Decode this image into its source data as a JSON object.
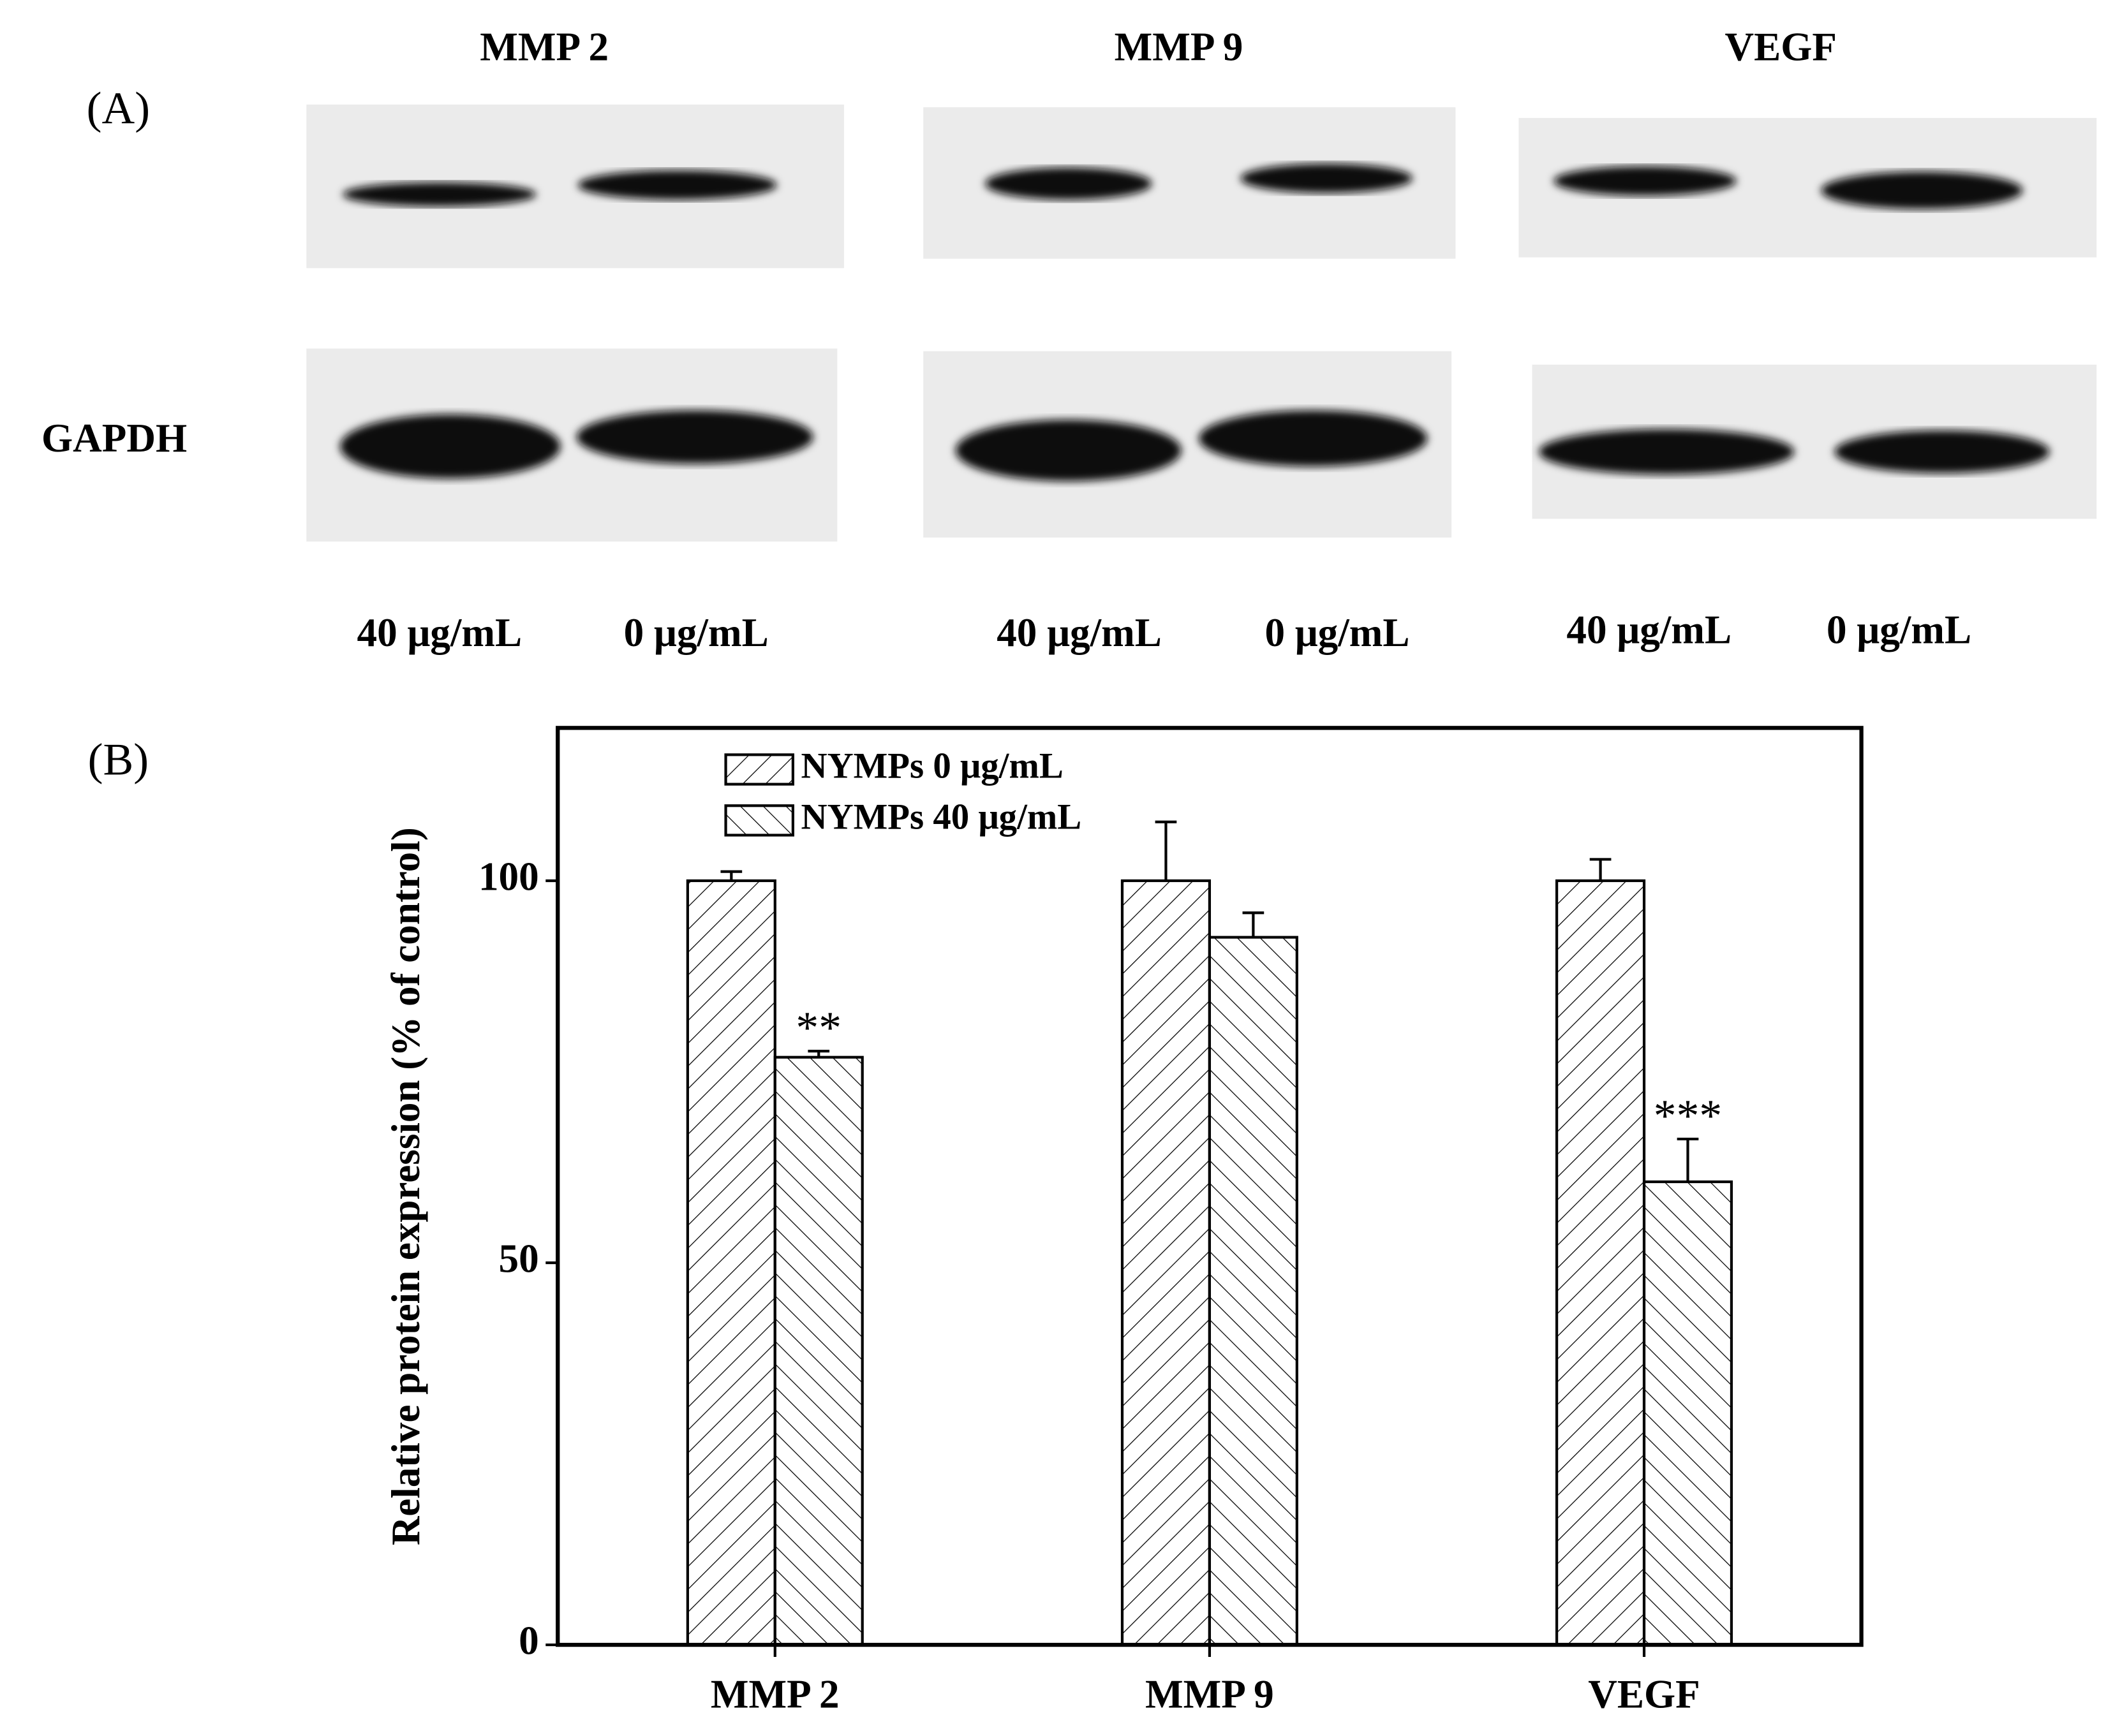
{
  "panel_labels": [
    "(A)",
    "(B)"
  ],
  "blot": {
    "headings": [
      "MMP 2",
      "MMP 9",
      "VEGF"
    ],
    "loading_control": "GAPDH",
    "lanes": [
      [
        "40 μg/mL",
        "0 μg/mL"
      ],
      [
        "40 μg/mL",
        "0 μg/mL"
      ],
      [
        "40 μg/mL",
        "0 μg/mL"
      ]
    ]
  },
  "chart_data": {
    "type": "bar",
    "y_label": "Relative protein expression (% of control)",
    "categories": [
      "MMP 2",
      "MMP 9",
      "VEGF"
    ],
    "series": [
      {
        "name": "NYMPs 0 μg/mL",
        "color": "#000000",
        "hatch": "/",
        "values": [
          100,
          100,
          100
        ],
        "errors": [
          1.2,
          7.7,
          2.8
        ]
      },
      {
        "name": "NYMPs 40 μg/mL",
        "color": "#000000",
        "hatch": "\\",
        "values": [
          76.9,
          92.6,
          60.6
        ],
        "errors": [
          0.8,
          3.2,
          5.6
        ],
        "value_annotations": [
          "**",
          null,
          "***"
        ]
      }
    ],
    "ylim": [
      0,
      120
    ],
    "yticks": [
      0,
      50,
      100
    ],
    "legend": "upper-left"
  }
}
